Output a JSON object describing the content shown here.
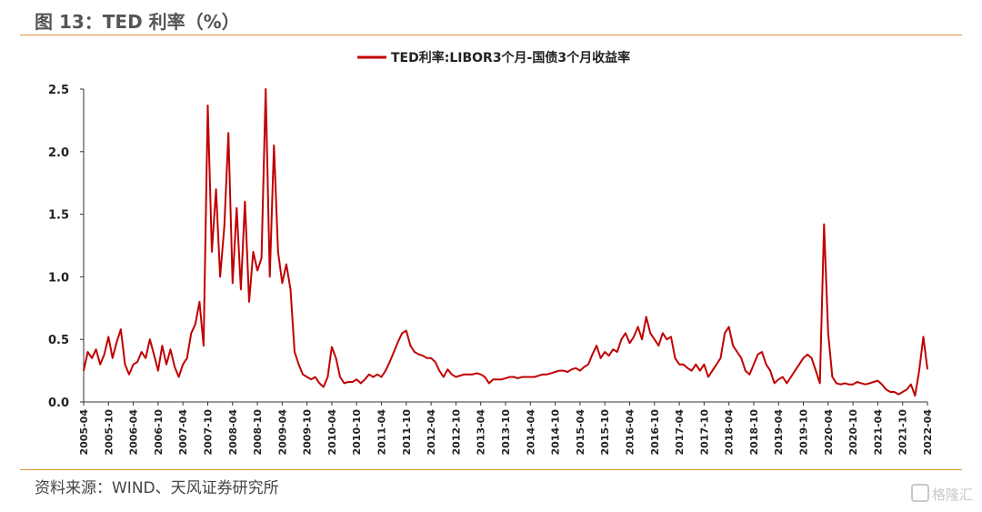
{
  "figure": {
    "title": "图 13：TED 利率（%）",
    "source": "资料来源：WIND、天风证券研究所",
    "watermark": "格隆汇"
  },
  "colors": {
    "series": "#c00000",
    "rule": "#e3973a",
    "axis": "#333333"
  },
  "chart_data": {
    "type": "line",
    "title": "",
    "xlabel": "",
    "ylabel": "",
    "ylim": [
      0.0,
      2.5
    ],
    "yticks": [
      "0.0",
      "0.5",
      "1.0",
      "1.5",
      "2.0",
      "2.5"
    ],
    "grid": false,
    "legend_position": "top-center",
    "x_tick_labels": [
      "2005-04",
      "2005-10",
      "2006-04",
      "2006-10",
      "2007-04",
      "2007-10",
      "2008-04",
      "2008-10",
      "2009-04",
      "2009-10",
      "2010-04",
      "2010-10",
      "2011-04",
      "2011-10",
      "2012-04",
      "2012-10",
      "2013-04",
      "2013-10",
      "2014-04",
      "2014-10",
      "2015-04",
      "2015-10",
      "2016-04",
      "2016-10",
      "2017-04",
      "2017-10",
      "2018-04",
      "2018-10",
      "2019-04",
      "2019-10",
      "2020-04",
      "2020-10",
      "2021-04",
      "2021-10",
      "2022-04"
    ],
    "series": [
      {
        "name": "TED利率:LIBOR3个月-国债3个月收益率",
        "color": "#c00000",
        "points": [
          [
            "2005-04",
            0.25
          ],
          [
            "2005-05",
            0.4
          ],
          [
            "2005-06",
            0.35
          ],
          [
            "2005-07",
            0.42
          ],
          [
            "2005-08",
            0.3
          ],
          [
            "2005-09",
            0.38
          ],
          [
            "2005-10",
            0.52
          ],
          [
            "2005-11",
            0.35
          ],
          [
            "2005-12",
            0.48
          ],
          [
            "2006-01",
            0.58
          ],
          [
            "2006-02",
            0.3
          ],
          [
            "2006-03",
            0.22
          ],
          [
            "2006-04",
            0.3
          ],
          [
            "2006-05",
            0.32
          ],
          [
            "2006-06",
            0.4
          ],
          [
            "2006-07",
            0.35
          ],
          [
            "2006-08",
            0.5
          ],
          [
            "2006-09",
            0.38
          ],
          [
            "2006-10",
            0.25
          ],
          [
            "2006-11",
            0.45
          ],
          [
            "2006-12",
            0.3
          ],
          [
            "2007-01",
            0.42
          ],
          [
            "2007-02",
            0.28
          ],
          [
            "2007-03",
            0.2
          ],
          [
            "2007-04",
            0.3
          ],
          [
            "2007-05",
            0.35
          ],
          [
            "2007-06",
            0.55
          ],
          [
            "2007-07",
            0.62
          ],
          [
            "2007-08",
            0.8
          ],
          [
            "2007-09",
            0.45
          ],
          [
            "2007-10",
            2.37
          ],
          [
            "2007-11",
            1.2
          ],
          [
            "2007-12",
            1.7
          ],
          [
            "2008-01",
            1.0
          ],
          [
            "2008-02",
            1.4
          ],
          [
            "2008-03",
            2.15
          ],
          [
            "2008-04",
            0.95
          ],
          [
            "2008-05",
            1.55
          ],
          [
            "2008-06",
            0.9
          ],
          [
            "2008-07",
            1.6
          ],
          [
            "2008-08",
            0.8
          ],
          [
            "2008-09",
            1.2
          ],
          [
            "2008-10",
            1.05
          ],
          [
            "2008-11",
            1.15
          ],
          [
            "2008-12",
            2.5
          ],
          [
            "2009-01",
            1.0
          ],
          [
            "2009-02",
            2.05
          ],
          [
            "2009-03",
            1.2
          ],
          [
            "2009-04",
            0.95
          ],
          [
            "2009-05",
            1.1
          ],
          [
            "2009-06",
            0.9
          ],
          [
            "2009-07",
            0.4
          ],
          [
            "2009-08",
            0.3
          ],
          [
            "2009-09",
            0.22
          ],
          [
            "2009-10",
            0.2
          ],
          [
            "2009-11",
            0.18
          ],
          [
            "2009-12",
            0.2
          ],
          [
            "2010-01",
            0.15
          ],
          [
            "2010-02",
            0.12
          ],
          [
            "2010-03",
            0.2
          ],
          [
            "2010-04",
            0.44
          ],
          [
            "2010-05",
            0.35
          ],
          [
            "2010-06",
            0.2
          ],
          [
            "2010-07",
            0.15
          ],
          [
            "2010-08",
            0.16
          ],
          [
            "2010-09",
            0.16
          ],
          [
            "2010-10",
            0.18
          ],
          [
            "2010-11",
            0.15
          ],
          [
            "2010-12",
            0.18
          ],
          [
            "2011-01",
            0.22
          ],
          [
            "2011-02",
            0.2
          ],
          [
            "2011-03",
            0.22
          ],
          [
            "2011-04",
            0.2
          ],
          [
            "2011-05",
            0.25
          ],
          [
            "2011-06",
            0.32
          ],
          [
            "2011-07",
            0.4
          ],
          [
            "2011-08",
            0.48
          ],
          [
            "2011-09",
            0.55
          ],
          [
            "2011-10",
            0.57
          ],
          [
            "2011-11",
            0.45
          ],
          [
            "2011-12",
            0.4
          ],
          [
            "2012-01",
            0.38
          ],
          [
            "2012-02",
            0.37
          ],
          [
            "2012-03",
            0.35
          ],
          [
            "2012-04",
            0.35
          ],
          [
            "2012-05",
            0.32
          ],
          [
            "2012-06",
            0.25
          ],
          [
            "2012-07",
            0.2
          ],
          [
            "2012-08",
            0.26
          ],
          [
            "2012-09",
            0.22
          ],
          [
            "2012-10",
            0.2
          ],
          [
            "2012-11",
            0.21
          ],
          [
            "2012-12",
            0.22
          ],
          [
            "2013-01",
            0.22
          ],
          [
            "2013-02",
            0.22
          ],
          [
            "2013-03",
            0.23
          ],
          [
            "2013-04",
            0.22
          ],
          [
            "2013-05",
            0.2
          ],
          [
            "2013-06",
            0.15
          ],
          [
            "2013-07",
            0.18
          ],
          [
            "2013-08",
            0.18
          ],
          [
            "2013-09",
            0.18
          ],
          [
            "2013-10",
            0.19
          ],
          [
            "2013-11",
            0.2
          ],
          [
            "2013-12",
            0.2
          ],
          [
            "2014-01",
            0.19
          ],
          [
            "2014-02",
            0.2
          ],
          [
            "2014-03",
            0.2
          ],
          [
            "2014-04",
            0.2
          ],
          [
            "2014-05",
            0.2
          ],
          [
            "2014-06",
            0.21
          ],
          [
            "2014-07",
            0.22
          ],
          [
            "2014-08",
            0.22
          ],
          [
            "2014-09",
            0.23
          ],
          [
            "2014-10",
            0.24
          ],
          [
            "2014-11",
            0.25
          ],
          [
            "2014-12",
            0.25
          ],
          [
            "2015-01",
            0.24
          ],
          [
            "2015-02",
            0.26
          ],
          [
            "2015-03",
            0.27
          ],
          [
            "2015-04",
            0.25
          ],
          [
            "2015-05",
            0.28
          ],
          [
            "2015-06",
            0.3
          ],
          [
            "2015-07",
            0.38
          ],
          [
            "2015-08",
            0.45
          ],
          [
            "2015-09",
            0.35
          ],
          [
            "2015-10",
            0.4
          ],
          [
            "2015-11",
            0.37
          ],
          [
            "2015-12",
            0.42
          ],
          [
            "2016-01",
            0.4
          ],
          [
            "2016-02",
            0.5
          ],
          [
            "2016-03",
            0.55
          ],
          [
            "2016-04",
            0.47
          ],
          [
            "2016-05",
            0.52
          ],
          [
            "2016-06",
            0.6
          ],
          [
            "2016-07",
            0.5
          ],
          [
            "2016-08",
            0.68
          ],
          [
            "2016-09",
            0.55
          ],
          [
            "2016-10",
            0.5
          ],
          [
            "2016-11",
            0.45
          ],
          [
            "2016-12",
            0.55
          ],
          [
            "2017-01",
            0.5
          ],
          [
            "2017-02",
            0.52
          ],
          [
            "2017-03",
            0.35
          ],
          [
            "2017-04",
            0.3
          ],
          [
            "2017-05",
            0.3
          ],
          [
            "2017-06",
            0.27
          ],
          [
            "2017-07",
            0.25
          ],
          [
            "2017-08",
            0.3
          ],
          [
            "2017-09",
            0.25
          ],
          [
            "2017-10",
            0.3
          ],
          [
            "2017-11",
            0.2
          ],
          [
            "2017-12",
            0.25
          ],
          [
            "2018-01",
            0.3
          ],
          [
            "2018-02",
            0.35
          ],
          [
            "2018-03",
            0.55
          ],
          [
            "2018-04",
            0.6
          ],
          [
            "2018-05",
            0.45
          ],
          [
            "2018-06",
            0.4
          ],
          [
            "2018-07",
            0.35
          ],
          [
            "2018-08",
            0.25
          ],
          [
            "2018-09",
            0.22
          ],
          [
            "2018-10",
            0.3
          ],
          [
            "2018-11",
            0.38
          ],
          [
            "2018-12",
            0.4
          ],
          [
            "2019-01",
            0.3
          ],
          [
            "2019-02",
            0.25
          ],
          [
            "2019-03",
            0.15
          ],
          [
            "2019-04",
            0.18
          ],
          [
            "2019-05",
            0.2
          ],
          [
            "2019-06",
            0.15
          ],
          [
            "2019-07",
            0.2
          ],
          [
            "2019-08",
            0.25
          ],
          [
            "2019-09",
            0.3
          ],
          [
            "2019-10",
            0.35
          ],
          [
            "2019-11",
            0.38
          ],
          [
            "2019-12",
            0.35
          ],
          [
            "2020-01",
            0.25
          ],
          [
            "2020-02",
            0.15
          ],
          [
            "2020-03",
            1.42
          ],
          [
            "2020-04",
            0.55
          ],
          [
            "2020-05",
            0.2
          ],
          [
            "2020-06",
            0.15
          ],
          [
            "2020-07",
            0.14
          ],
          [
            "2020-08",
            0.15
          ],
          [
            "2020-09",
            0.14
          ],
          [
            "2020-10",
            0.14
          ],
          [
            "2020-11",
            0.16
          ],
          [
            "2020-12",
            0.15
          ],
          [
            "2021-01",
            0.14
          ],
          [
            "2021-02",
            0.15
          ],
          [
            "2021-03",
            0.16
          ],
          [
            "2021-04",
            0.17
          ],
          [
            "2021-05",
            0.14
          ],
          [
            "2021-06",
            0.1
          ],
          [
            "2021-07",
            0.08
          ],
          [
            "2021-08",
            0.08
          ],
          [
            "2021-09",
            0.06
          ],
          [
            "2021-10",
            0.08
          ],
          [
            "2021-11",
            0.1
          ],
          [
            "2021-12",
            0.14
          ],
          [
            "2022-01",
            0.05
          ],
          [
            "2022-02",
            0.25
          ],
          [
            "2022-03",
            0.52
          ],
          [
            "2022-04",
            0.26
          ]
        ]
      }
    ]
  }
}
